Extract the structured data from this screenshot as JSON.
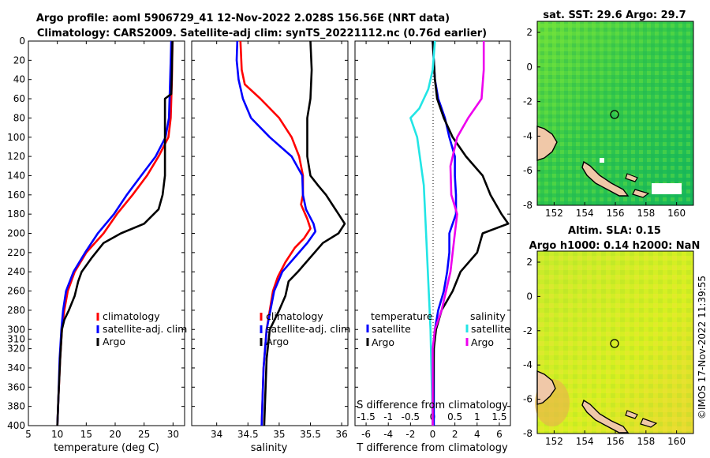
{
  "header": {
    "line1": "Argo profile: aoml 5906729_41 12-Nov-2022 2.028S 156.56E (NRT data)",
    "line2": "Climatology: CARS2009. Satellite-adj clim: synTS_20221112.nc (0.76d earlier)"
  },
  "credit": "©IMOS 17-Nov-2022 11:39:55",
  "colors": {
    "climatology": "#ff0000",
    "satellite": "#0000ff",
    "argo": "#000000",
    "cyan": "#22e5e5",
    "magenta": "#ee00ee"
  },
  "depth_ticks": [
    0,
    20,
    40,
    60,
    80,
    100,
    120,
    140,
    160,
    180,
    200,
    220,
    240,
    260,
    280,
    300,
    310,
    320,
    340,
    360,
    380,
    400
  ],
  "chart_data": [
    {
      "id": "temperature",
      "type": "line",
      "xlabel": "temperature (deg C)",
      "ylabel": "depth",
      "xlim": [
        5,
        32
      ],
      "ylim": [
        400,
        0
      ],
      "xticks": [
        5,
        10,
        15,
        20,
        25,
        30
      ],
      "yticks": [
        0,
        20,
        40,
        60,
        80,
        100,
        120,
        140,
        160,
        180,
        200,
        220,
        240,
        260,
        280,
        300,
        310,
        320,
        340,
        360,
        380,
        400
      ],
      "legend": [
        "climatology",
        "satellite-adj. clim",
        "Argo"
      ],
      "series": [
        {
          "name": "climatology",
          "color": "#ff0000",
          "points": [
            [
              29.9,
              0
            ],
            [
              29.8,
              40
            ],
            [
              29.6,
              80
            ],
            [
              29.2,
              100
            ],
            [
              27.5,
              120
            ],
            [
              25.5,
              140
            ],
            [
              23,
              160
            ],
            [
              20.3,
              180
            ],
            [
              18,
              200
            ],
            [
              15,
              220
            ],
            [
              13,
              240
            ],
            [
              11.8,
              260
            ],
            [
              11.2,
              280
            ],
            [
              10.8,
              300
            ],
            [
              10.5,
              330
            ],
            [
              10.2,
              370
            ],
            [
              10,
              400
            ]
          ]
        },
        {
          "name": "satellite-adj. clim",
          "color": "#0000ff",
          "points": [
            [
              29.7,
              0
            ],
            [
              29.5,
              40
            ],
            [
              29.3,
              80
            ],
            [
              28.7,
              100
            ],
            [
              27,
              120
            ],
            [
              24.5,
              140
            ],
            [
              22,
              160
            ],
            [
              19.8,
              180
            ],
            [
              17,
              200
            ],
            [
              14.8,
              220
            ],
            [
              12.8,
              240
            ],
            [
              11.5,
              260
            ],
            [
              11,
              280
            ],
            [
              10.7,
              300
            ],
            [
              10.4,
              330
            ],
            [
              10.2,
              370
            ],
            [
              10,
              400
            ]
          ]
        },
        {
          "name": "Argo",
          "color": "#000000",
          "points": [
            [
              29.9,
              0
            ],
            [
              29.8,
              30
            ],
            [
              29.7,
              55
            ],
            [
              28.6,
              60
            ],
            [
              28.6,
              140
            ],
            [
              28.2,
              160
            ],
            [
              27.5,
              175
            ],
            [
              25,
              190
            ],
            [
              21,
              200
            ],
            [
              18,
              210
            ],
            [
              16,
              225
            ],
            [
              14.2,
              240
            ],
            [
              13.6,
              250
            ],
            [
              13,
              265
            ],
            [
              12,
              280
            ],
            [
              11.2,
              290
            ],
            [
              10.8,
              300
            ],
            [
              10.5,
              330
            ],
            [
              10.2,
              370
            ],
            [
              10,
              400
            ]
          ]
        }
      ]
    },
    {
      "id": "salinity",
      "type": "line",
      "xlabel": "salinity",
      "ylabel": "depth",
      "xlim": [
        33.6,
        36.1
      ],
      "ylim": [
        400,
        0
      ],
      "xticks": [
        34,
        34.5,
        35,
        35.5,
        36
      ],
      "legend": [
        "climatology",
        "satellite-adj. clim",
        "Argo"
      ],
      "series": [
        {
          "name": "climatology",
          "color": "#ff0000",
          "points": [
            [
              34.38,
              0
            ],
            [
              34.4,
              30
            ],
            [
              34.45,
              45
            ],
            [
              34.7,
              60
            ],
            [
              35.0,
              80
            ],
            [
              35.2,
              100
            ],
            [
              35.32,
              120
            ],
            [
              35.38,
              140
            ],
            [
              35.38,
              160
            ],
            [
              35.35,
              170
            ],
            [
              35.45,
              185
            ],
            [
              35.5,
              195
            ],
            [
              35.4,
              205
            ],
            [
              35.25,
              215
            ],
            [
              35.1,
              230
            ],
            [
              34.98,
              245
            ],
            [
              34.9,
              260
            ],
            [
              34.85,
              280
            ],
            [
              34.8,
              300
            ],
            [
              34.75,
              340
            ],
            [
              34.72,
              400
            ]
          ]
        },
        {
          "name": "satellite-adj. clim",
          "color": "#0000ff",
          "points": [
            [
              34.33,
              0
            ],
            [
              34.32,
              20
            ],
            [
              34.35,
              40
            ],
            [
              34.42,
              60
            ],
            [
              34.55,
              80
            ],
            [
              34.85,
              100
            ],
            [
              35.2,
              120
            ],
            [
              35.37,
              140
            ],
            [
              35.38,
              160
            ],
            [
              35.43,
              175
            ],
            [
              35.55,
              190
            ],
            [
              35.58,
              198
            ],
            [
              35.45,
              210
            ],
            [
              35.25,
              225
            ],
            [
              35.05,
              240
            ],
            [
              34.92,
              260
            ],
            [
              34.86,
              280
            ],
            [
              34.8,
              300
            ],
            [
              34.75,
              340
            ],
            [
              34.72,
              400
            ]
          ]
        },
        {
          "name": "Argo",
          "color": "#000000",
          "points": [
            [
              35.5,
              0
            ],
            [
              35.52,
              30
            ],
            [
              35.5,
              60
            ],
            [
              35.45,
              80
            ],
            [
              35.45,
              120
            ],
            [
              35.5,
              140
            ],
            [
              35.62,
              150
            ],
            [
              35.75,
              160
            ],
            [
              35.85,
              170
            ],
            [
              35.95,
              180
            ],
            [
              36.05,
              190
            ],
            [
              35.95,
              200
            ],
            [
              35.7,
              210
            ],
            [
              35.5,
              225
            ],
            [
              35.3,
              240
            ],
            [
              35.15,
              250
            ],
            [
              35.1,
              265
            ],
            [
              35.0,
              280
            ],
            [
              34.85,
              300
            ],
            [
              34.8,
              330
            ],
            [
              34.76,
              400
            ]
          ]
        }
      ]
    },
    {
      "id": "difference",
      "type": "line",
      "xlabel": "T difference from climatology",
      "top_axis_label": "S difference from climatology",
      "xlim": [
        -7,
        7
      ],
      "ylim": [
        400,
        0
      ],
      "xticks": [
        -6,
        -4,
        -2,
        0,
        2,
        4,
        6
      ],
      "top_ticks": [
        -1.5,
        -1,
        -0.5,
        0,
        0.5,
        1,
        1.5
      ],
      "legend_groups": [
        {
          "title": "temperature",
          "items": [
            "satellite",
            "Argo"
          ]
        },
        {
          "title": "salinity",
          "items": [
            "satellite",
            "Argo"
          ]
        }
      ],
      "series": [
        {
          "name": "temperature satellite",
          "color": "#0000ff",
          "points": [
            [
              0,
              0
            ],
            [
              0.1,
              20
            ],
            [
              0.2,
              40
            ],
            [
              0.5,
              60
            ],
            [
              1.1,
              80
            ],
            [
              1.5,
              100
            ],
            [
              2,
              120
            ],
            [
              2,
              140
            ],
            [
              2.1,
              160
            ],
            [
              2.1,
              180
            ],
            [
              1.5,
              200
            ],
            [
              1.5,
              220
            ],
            [
              1.3,
              240
            ],
            [
              1,
              260
            ],
            [
              0.5,
              280
            ],
            [
              0.2,
              300
            ],
            [
              0.1,
              320
            ],
            [
              0.1,
              400
            ]
          ]
        },
        {
          "name": "temperature Argo",
          "color": "#000000",
          "points": [
            [
              0,
              0
            ],
            [
              0.1,
              20
            ],
            [
              0.2,
              40
            ],
            [
              0.4,
              60
            ],
            [
              1,
              80
            ],
            [
              1.8,
              100
            ],
            [
              3,
              120
            ],
            [
              4.5,
              140
            ],
            [
              5.2,
              160
            ],
            [
              6.2,
              180
            ],
            [
              6.8,
              190
            ],
            [
              4.5,
              200
            ],
            [
              4,
              220
            ],
            [
              2.5,
              240
            ],
            [
              1.8,
              260
            ],
            [
              0.8,
              280
            ],
            [
              0.3,
              300
            ],
            [
              0.1,
              320
            ],
            [
              0,
              400
            ]
          ]
        },
        {
          "name": "salinity satellite",
          "color": "#22e5e5",
          "points": [
            [
              0.05,
              0
            ],
            [
              0,
              30
            ],
            [
              -0.1,
              50
            ],
            [
              -0.3,
              70
            ],
            [
              -0.5,
              80
            ],
            [
              -0.35,
              100
            ],
            [
              -0.2,
              150
            ],
            [
              -0.15,
              200
            ],
            [
              -0.1,
              250
            ],
            [
              -0.05,
              300
            ],
            [
              0,
              400
            ]
          ]
        },
        {
          "name": "salinity Argo",
          "color": "#ee00ee",
          "points": [
            [
              1.15,
              0
            ],
            [
              1.15,
              30
            ],
            [
              1.1,
              60
            ],
            [
              0.8,
              80
            ],
            [
              0.55,
              100
            ],
            [
              0.4,
              130
            ],
            [
              0.42,
              160
            ],
            [
              0.55,
              180
            ],
            [
              0.5,
              200
            ],
            [
              0.45,
              220
            ],
            [
              0.4,
              240
            ],
            [
              0.3,
              260
            ],
            [
              0.2,
              280
            ],
            [
              0.05,
              300
            ],
            [
              0,
              320
            ],
            [
              0,
              400
            ]
          ]
        }
      ]
    }
  ],
  "maps": [
    {
      "id": "sst",
      "title": "sat. SST: 29.6 Argo: 29.7",
      "xticks": [
        "152",
        "154",
        "156",
        "158",
        "160"
      ],
      "yticks": [
        "2",
        "0",
        "-2",
        "-4",
        "-6",
        "-8"
      ]
    },
    {
      "id": "sla",
      "title_line1": "Altim. SLA: 0.15",
      "title_line2": "Argo h1000: 0.14 h2000: NaN",
      "xticks": [
        "152",
        "154",
        "156",
        "158",
        "160"
      ],
      "yticks": [
        "2",
        "0",
        "-2",
        "-4",
        "-6",
        "-8"
      ]
    }
  ]
}
